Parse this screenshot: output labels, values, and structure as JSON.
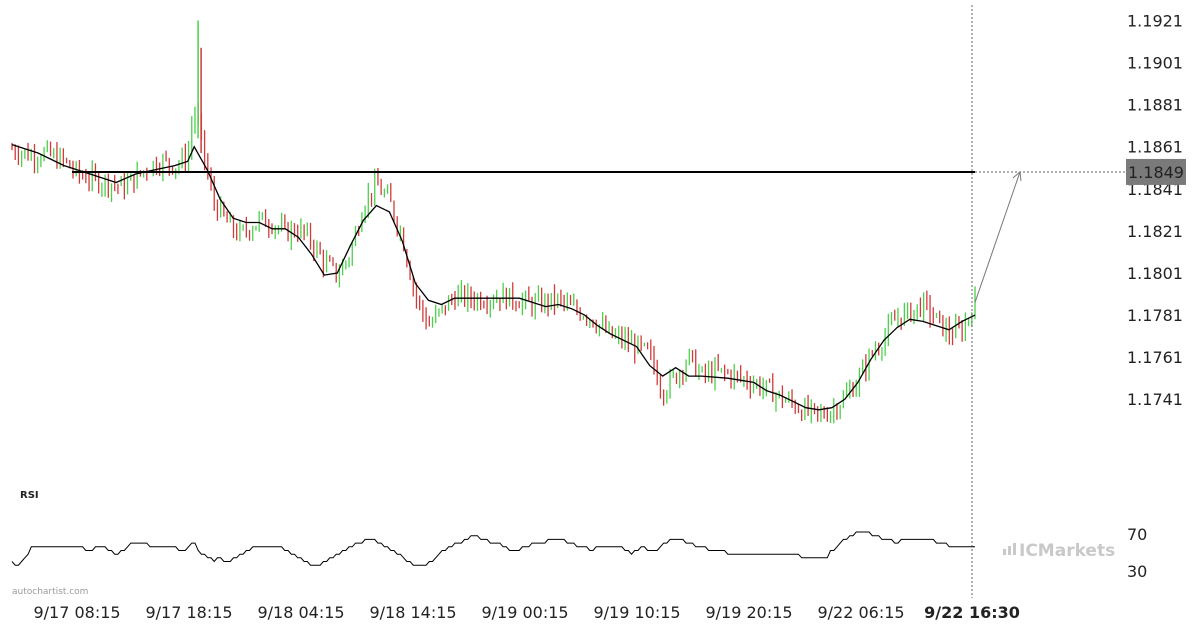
{
  "chart_data": {
    "type": "candlestick",
    "title": "",
    "price_axis": {
      "ticks": [
        "1.1921",
        "1.1901",
        "1.1881",
        "1.1861",
        "1.1841",
        "1.1821",
        "1.1801",
        "1.1781",
        "1.1761",
        "1.1741"
      ],
      "range": [
        1.1705,
        1.1925
      ]
    },
    "time_axis": {
      "ticks": [
        "9/17 08:15",
        "9/17 18:15",
        "9/18 04:15",
        "9/18 14:15",
        "9/19 00:15",
        "9/19 10:15",
        "9/19 20:15",
        "9/22 06:15"
      ],
      "current_label": "9/22 16:30"
    },
    "resistance_level": 1.1849,
    "resistance_label": "1.1849",
    "projection": {
      "from_price": 1.1787,
      "to_price": 1.1849
    },
    "colors": {
      "up": "#4cd04c",
      "down": "#d03a3a",
      "ma": "#000000",
      "level": "#000000",
      "label_bg": "#7a7a7a"
    },
    "price_path": [
      [
        0,
        1.186
      ],
      [
        3,
        1.1857
      ],
      [
        5,
        1.1858
      ],
      [
        8,
        1.1854
      ],
      [
        10,
        1.1848
      ],
      [
        13,
        1.1845
      ],
      [
        15,
        1.1844
      ],
      [
        17,
        1.1842
      ],
      [
        19,
        1.1846
      ],
      [
        21,
        1.1852
      ],
      [
        23,
        1.1854
      ],
      [
        25,
        1.1852
      ],
      [
        27,
        1.1856
      ],
      [
        28,
        1.188
      ],
      [
        29,
        1.1866
      ],
      [
        30,
        1.1848
      ],
      [
        31,
        1.1835
      ],
      [
        33,
        1.1825
      ],
      [
        35,
        1.1819
      ],
      [
        38,
        1.1826
      ],
      [
        40,
        1.1825
      ],
      [
        42,
        1.182
      ],
      [
        44,
        1.1822
      ],
      [
        46,
        1.1816
      ],
      [
        48,
        1.1806
      ],
      [
        50,
        1.18
      ],
      [
        52,
        1.181
      ],
      [
        54,
        1.1834
      ],
      [
        56,
        1.1843
      ],
      [
        58,
        1.1835
      ],
      [
        60,
        1.1818
      ],
      [
        62,
        1.179
      ],
      [
        64,
        1.1776
      ],
      [
        66,
        1.1783
      ],
      [
        68,
        1.179
      ],
      [
        70,
        1.1789
      ],
      [
        73,
        1.1789
      ],
      [
        75,
        1.179
      ],
      [
        77,
        1.1789
      ],
      [
        80,
        1.1786
      ],
      [
        82,
        1.1787
      ],
      [
        84,
        1.1788
      ],
      [
        86,
        1.1784
      ],
      [
        88,
        1.1782
      ],
      [
        90,
        1.1777
      ],
      [
        92,
        1.1771
      ],
      [
        94,
        1.1769
      ],
      [
        96,
        1.1766
      ],
      [
        98,
        1.1762
      ],
      [
        100,
        1.1745
      ],
      [
        102,
        1.1752
      ],
      [
        104,
        1.1761
      ],
      [
        106,
        1.1752
      ],
      [
        108,
        1.1754
      ],
      [
        110,
        1.1753
      ],
      [
        112,
        1.1751
      ],
      [
        114,
        1.1749
      ],
      [
        116,
        1.1746
      ],
      [
        118,
        1.1742
      ],
      [
        120,
        1.1739
      ],
      [
        122,
        1.1735
      ],
      [
        124,
        1.1733
      ],
      [
        126,
        1.1736
      ],
      [
        128,
        1.1742
      ],
      [
        130,
        1.175
      ],
      [
        132,
        1.1762
      ],
      [
        134,
        1.177
      ],
      [
        136,
        1.178
      ],
      [
        138,
        1.1782
      ],
      [
        140,
        1.1786
      ],
      [
        142,
        1.1779
      ],
      [
        144,
        1.1772
      ],
      [
        146,
        1.1774
      ],
      [
        148,
        1.1787
      ]
    ],
    "ma_path": [
      [
        0,
        1.1862
      ],
      [
        4,
        1.1858
      ],
      [
        8,
        1.1852
      ],
      [
        12,
        1.1848
      ],
      [
        16,
        1.1844
      ],
      [
        19,
        1.1848
      ],
      [
        22,
        1.185
      ],
      [
        25,
        1.1852
      ],
      [
        27,
        1.1854
      ],
      [
        28,
        1.1861
      ],
      [
        30,
        1.185
      ],
      [
        32,
        1.1836
      ],
      [
        34,
        1.1827
      ],
      [
        36,
        1.1825
      ],
      [
        38,
        1.1825
      ],
      [
        40,
        1.1822
      ],
      [
        42,
        1.1822
      ],
      [
        44,
        1.1818
      ],
      [
        46,
        1.181
      ],
      [
        48,
        1.18
      ],
      [
        50,
        1.1801
      ],
      [
        52,
        1.1814
      ],
      [
        54,
        1.1826
      ],
      [
        56,
        1.1833
      ],
      [
        58,
        1.183
      ],
      [
        60,
        1.1816
      ],
      [
        62,
        1.1796
      ],
      [
        64,
        1.1788
      ],
      [
        66,
        1.1786
      ],
      [
        68,
        1.1789
      ],
      [
        70,
        1.1789
      ],
      [
        74,
        1.1789
      ],
      [
        78,
        1.1789
      ],
      [
        80,
        1.1787
      ],
      [
        82,
        1.1785
      ],
      [
        84,
        1.1786
      ],
      [
        86,
        1.1784
      ],
      [
        88,
        1.1781
      ],
      [
        90,
        1.1776
      ],
      [
        92,
        1.1772
      ],
      [
        94,
        1.1769
      ],
      [
        96,
        1.1766
      ],
      [
        98,
        1.1757
      ],
      [
        100,
        1.1752
      ],
      [
        102,
        1.1756
      ],
      [
        104,
        1.1752
      ],
      [
        106,
        1.1752
      ],
      [
        110,
        1.1751
      ],
      [
        114,
        1.1749
      ],
      [
        116,
        1.1745
      ],
      [
        118,
        1.1743
      ],
      [
        120,
        1.174
      ],
      [
        122,
        1.1737
      ],
      [
        124,
        1.1736
      ],
      [
        126,
        1.1737
      ],
      [
        128,
        1.1741
      ],
      [
        130,
        1.1749
      ],
      [
        132,
        1.176
      ],
      [
        134,
        1.1769
      ],
      [
        136,
        1.1775
      ],
      [
        138,
        1.1779
      ],
      [
        140,
        1.1778
      ],
      [
        142,
        1.1776
      ],
      [
        144,
        1.1774
      ],
      [
        146,
        1.1778
      ],
      [
        148,
        1.1781
      ]
    ],
    "rsi": {
      "label": "RSI",
      "ticks": [
        "70",
        "30"
      ],
      "range": [
        20,
        85
      ],
      "path": [
        [
          0,
          40
        ],
        [
          1,
          35
        ],
        [
          2,
          44
        ],
        [
          3,
          56
        ],
        [
          5,
          58
        ],
        [
          8,
          55
        ],
        [
          10,
          58
        ],
        [
          12,
          52
        ],
        [
          14,
          58
        ],
        [
          16,
          46
        ],
        [
          18,
          58
        ],
        [
          20,
          61
        ],
        [
          22,
          56
        ],
        [
          24,
          57
        ],
        [
          26,
          52
        ],
        [
          27,
          55
        ],
        [
          28,
          60
        ],
        [
          29,
          48
        ],
        [
          30,
          45
        ],
        [
          31,
          40
        ],
        [
          32,
          44
        ],
        [
          33,
          38
        ],
        [
          35,
          46
        ],
        [
          37,
          54
        ],
        [
          39,
          58
        ],
        [
          41,
          56
        ],
        [
          43,
          49
        ],
        [
          45,
          40
        ],
        [
          47,
          35
        ],
        [
          49,
          44
        ],
        [
          51,
          51
        ],
        [
          53,
          59
        ],
        [
          55,
          65
        ],
        [
          57,
          57
        ],
        [
          59,
          50
        ],
        [
          61,
          40
        ],
        [
          63,
          34
        ],
        [
          65,
          43
        ],
        [
          67,
          56
        ],
        [
          69,
          60
        ],
        [
          71,
          68
        ],
        [
          73,
          63
        ],
        [
          75,
          58
        ],
        [
          77,
          50
        ],
        [
          79,
          57
        ],
        [
          81,
          60
        ],
        [
          83,
          64
        ],
        [
          85,
          62
        ],
        [
          87,
          57
        ],
        [
          89,
          53
        ],
        [
          91,
          56
        ],
        [
          93,
          58
        ],
        [
          95,
          49
        ],
        [
          97,
          55
        ],
        [
          99,
          52
        ],
        [
          100,
          60
        ],
        [
          102,
          66
        ],
        [
          104,
          60
        ],
        [
          106,
          56
        ],
        [
          108,
          52
        ],
        [
          110,
          50
        ],
        [
          112,
          49
        ],
        [
          114,
          47
        ],
        [
          116,
          48
        ],
        [
          118,
          46
        ],
        [
          120,
          47
        ],
        [
          122,
          45
        ],
        [
          124,
          44
        ],
        [
          125,
          43
        ],
        [
          126,
          52
        ],
        [
          128,
          64
        ],
        [
          130,
          72
        ],
        [
          132,
          70
        ],
        [
          134,
          65
        ],
        [
          136,
          61
        ],
        [
          138,
          66
        ],
        [
          140,
          63
        ],
        [
          142,
          62
        ],
        [
          144,
          58
        ],
        [
          146,
          56
        ],
        [
          148,
          56
        ]
      ]
    },
    "overlay_labels": {
      "watermark": "autochartist.com",
      "brand": "ICMarkets"
    }
  }
}
